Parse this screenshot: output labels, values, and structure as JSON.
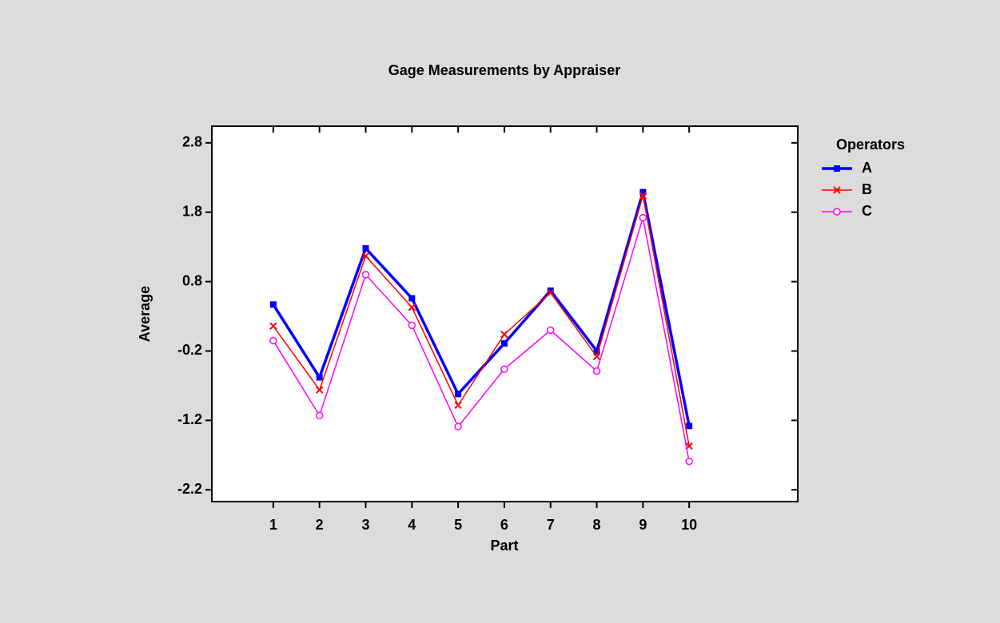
{
  "chart_data": {
    "type": "line",
    "title": "Gage Measurements by Appraiser",
    "x_label": "Part",
    "y_label": "Average",
    "legend_title": "Operators",
    "x": [
      1,
      2,
      3,
      4,
      5,
      6,
      7,
      8,
      9,
      10
    ],
    "series": [
      {
        "name": "A",
        "color": "#0000ff",
        "marker": "square",
        "values": [
          0.47,
          -0.58,
          1.28,
          0.56,
          -0.82,
          -0.09,
          0.67,
          -0.2,
          2.09,
          -1.28
        ]
      },
      {
        "name": "B",
        "color": "#ff0000",
        "marker": "x",
        "values": [
          0.16,
          -0.76,
          1.17,
          0.43,
          -0.98,
          0.04,
          0.64,
          -0.28,
          2.04,
          -1.57
        ]
      },
      {
        "name": "C",
        "color": "#ff00ff",
        "marker": "circle",
        "values": [
          -0.05,
          -1.13,
          0.9,
          0.17,
          -1.29,
          -0.46,
          0.1,
          -0.49,
          1.72,
          -1.79
        ]
      }
    ],
    "xlim": [
      -0.33,
      12.35
    ],
    "xticks": [
      1,
      2,
      3,
      4,
      5,
      6,
      7,
      8,
      9,
      10
    ],
    "ylim": [
      -2.37,
      3.04
    ],
    "yticks": [
      2.8,
      1.8,
      0.8,
      -0.2,
      -1.2,
      -2.2
    ],
    "legend": "right"
  }
}
